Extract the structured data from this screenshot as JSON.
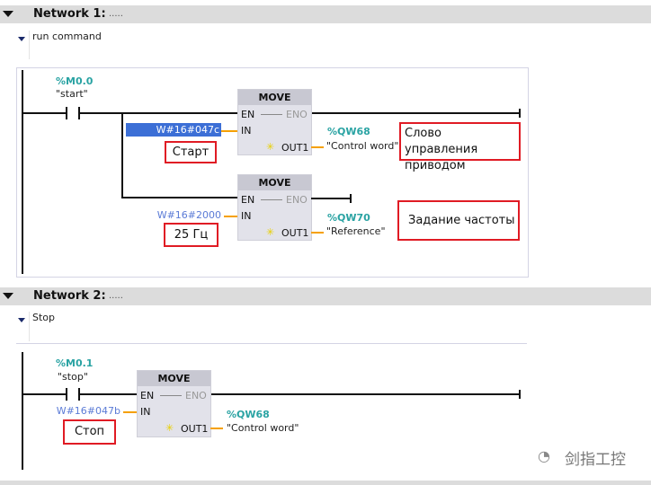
{
  "networks": [
    {
      "title": "Network 1:",
      "dots": ".....",
      "comment": "run command",
      "contact": {
        "address": "%M0.0",
        "tag": "\"start\""
      },
      "blocks": [
        {
          "name": "MOVE",
          "en": "EN",
          "eno": "ENO",
          "in": "IN",
          "out": "OUT1",
          "in_value": "W#16#047c",
          "in_selected": true,
          "out_address": "%QW68",
          "out_tag": "\"Control word\"",
          "note": "Старт",
          "out_note": "Слово управления приводом"
        },
        {
          "name": "MOVE",
          "en": "EN",
          "eno": "ENO",
          "in": "IN",
          "out": "OUT1",
          "in_value": "W#16#2000",
          "out_address": "%QW70",
          "out_tag": "\"Reference\"",
          "note": "25 Гц",
          "out_note": "Задание частоты"
        }
      ]
    },
    {
      "title": "Network 2:",
      "dots": ".....",
      "comment": "Stop",
      "contact": {
        "address": "%M0.1",
        "tag": "\"stop\""
      },
      "blocks": [
        {
          "name": "MOVE",
          "en": "EN",
          "eno": "ENO",
          "in": "IN",
          "out": "OUT1",
          "in_value": "W#16#047b",
          "out_address": "%QW68",
          "out_tag": "\"Control word\"",
          "note": "Стоп"
        }
      ]
    }
  ],
  "watermark": "剑指工控",
  "colors": {
    "address": "#2aa3a3",
    "value": "#5b7bd6",
    "selection": "#3c6fd6",
    "annotation": "#e01b24",
    "connection": "#f5a000"
  }
}
